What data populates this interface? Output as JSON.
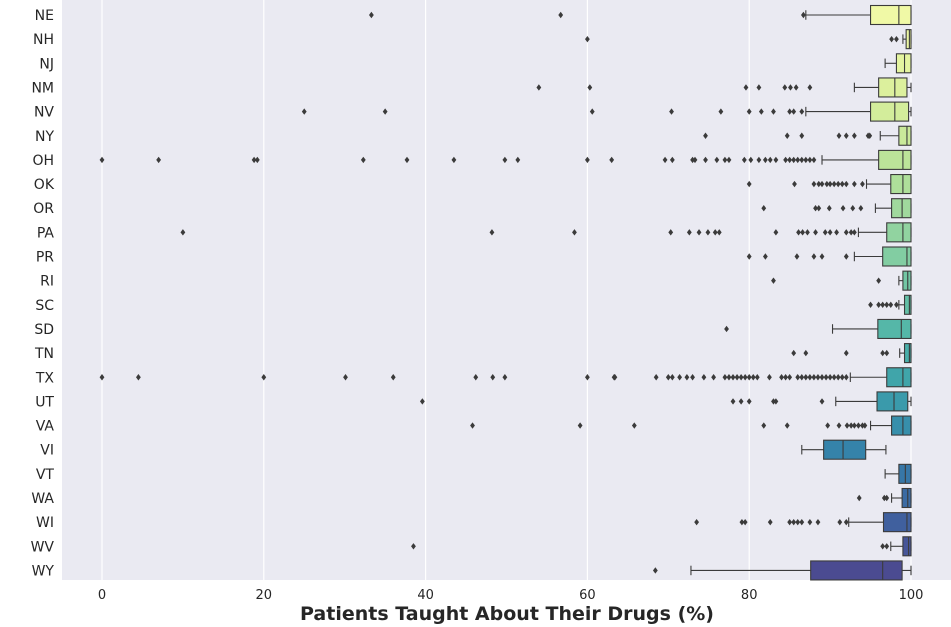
{
  "chart_data": {
    "type": "boxplot",
    "xlabel": "Patients Taught About Their Drugs (%)",
    "ylabel": "",
    "xlim": [
      -5,
      100.5
    ],
    "xticks": [
      0,
      20,
      40,
      60,
      80,
      100
    ],
    "grid": true,
    "orientation": "horizontal",
    "categories": [
      "NE",
      "NH",
      "NJ",
      "NM",
      "NV",
      "NY",
      "OH",
      "OK",
      "OR",
      "PA",
      "PR",
      "RI",
      "SC",
      "SD",
      "TN",
      "TX",
      "UT",
      "VA",
      "VI",
      "VT",
      "WA",
      "WI",
      "WV",
      "WY"
    ],
    "colors": [
      "#f0f9a6",
      "#ebf6a3",
      "#e4f4a0",
      "#dcf09d",
      "#d3ed9b",
      "#c9e99a",
      "#bce499",
      "#aedf9a",
      "#a0d99d",
      "#91d3a0",
      "#82cda2",
      "#72c6a4",
      "#63bfa6",
      "#55b7a8",
      "#49aea9",
      "#40a5aa",
      "#3a9aab",
      "#378fab",
      "#3583aa",
      "#3777a7",
      "#3b6ba3",
      "#40609e",
      "#465598",
      "#4b4b91"
    ],
    "boxes": [
      {
        "cat": "NE",
        "whislo": 87,
        "q1": 95,
        "med": 98.5,
        "q3": 100,
        "whishi": 100,
        "fliers": [
          33.3,
          56.7,
          86.7
        ]
      },
      {
        "cat": "NH",
        "whislo": 99,
        "q1": 99.4,
        "med": 99.8,
        "q3": 100,
        "whishi": 100,
        "fliers": [
          60,
          97.6,
          98.2
        ]
      },
      {
        "cat": "NJ",
        "whislo": 96.8,
        "q1": 98.2,
        "med": 99.2,
        "q3": 100,
        "whishi": 100,
        "fliers": []
      },
      {
        "cat": "NM",
        "whislo": 93,
        "q1": 96,
        "med": 98,
        "q3": 99.5,
        "whishi": 100,
        "fliers": [
          54,
          60.3,
          79.6,
          81.2,
          84.4,
          85.1,
          85.8,
          87.5
        ]
      },
      {
        "cat": "NV",
        "whislo": 87,
        "q1": 95,
        "med": 98,
        "q3": 99.7,
        "whishi": 100,
        "fliers": [
          25,
          35,
          60.6,
          70.4,
          76.5,
          80,
          81.5,
          83,
          85,
          85.5,
          86.5
        ]
      },
      {
        "cat": "NY",
        "whislo": 96.2,
        "q1": 98.5,
        "med": 99.5,
        "q3": 100,
        "whishi": 100,
        "fliers": [
          74.6,
          84.7,
          86.5,
          91.1,
          92,
          93,
          94.7,
          94.9
        ]
      },
      {
        "cat": "OH",
        "whislo": 89,
        "q1": 96,
        "med": 99,
        "q3": 100,
        "whishi": 100,
        "fliers": [
          0,
          7,
          18.8,
          19.2,
          32.3,
          37.7,
          43.5,
          49.8,
          51.4,
          60,
          63,
          69.6,
          70.5,
          73,
          73.3,
          74.6,
          76,
          77,
          77.5,
          79.4,
          80.2,
          81.2,
          82,
          82.6,
          83.3,
          84.5,
          85,
          85.5,
          86,
          86.5,
          87,
          87.5,
          88
        ]
      },
      {
        "cat": "OK",
        "whislo": 94.5,
        "q1": 97.5,
        "med": 99,
        "q3": 100,
        "whishi": 100,
        "fliers": [
          80,
          85.6,
          88,
          88.6,
          89,
          89.6,
          90,
          90.5,
          91,
          91.5,
          92,
          93,
          94
        ]
      },
      {
        "cat": "OR",
        "whislo": 95.6,
        "q1": 97.6,
        "med": 98.9,
        "q3": 100,
        "whishi": 100,
        "fliers": [
          81.8,
          88.2,
          88.6,
          89.9,
          91.6,
          92.8,
          93.8
        ]
      },
      {
        "cat": "PA",
        "whislo": 93.5,
        "q1": 97,
        "med": 99,
        "q3": 100,
        "whishi": 100,
        "fliers": [
          10,
          48.2,
          58.4,
          70.3,
          72.6,
          73.8,
          74.9,
          75.8,
          76.3,
          83.3,
          86.1,
          86.6,
          87.2,
          88.2,
          89.4,
          90,
          90.8,
          92,
          92.6,
          93
        ]
      },
      {
        "cat": "PR",
        "whislo": 93,
        "q1": 96.5,
        "med": 99.5,
        "q3": 100,
        "whishi": 100,
        "fliers": [
          80,
          82,
          85.9,
          88,
          89,
          92
        ]
      },
      {
        "cat": "RI",
        "whislo": 98.5,
        "q1": 99,
        "med": 99.6,
        "q3": 100,
        "whishi": 100,
        "fliers": [
          83,
          96
        ]
      },
      {
        "cat": "SC",
        "whislo": 98.5,
        "q1": 99.2,
        "med": 99.8,
        "q3": 100,
        "whishi": 100,
        "fliers": [
          95,
          96,
          96.5,
          97,
          97.5,
          98.2
        ]
      },
      {
        "cat": "SD",
        "whislo": 90.3,
        "q1": 95.9,
        "med": 98.8,
        "q3": 100,
        "whishi": 100,
        "fliers": [
          77.2
        ]
      },
      {
        "cat": "TN",
        "whislo": 98.6,
        "q1": 99.2,
        "med": 99.8,
        "q3": 100,
        "whishi": 100,
        "fliers": [
          85.5,
          87,
          92,
          96.5,
          97
        ]
      },
      {
        "cat": "TX",
        "whislo": 92.5,
        "q1": 97,
        "med": 99,
        "q3": 100,
        "whishi": 100,
        "fliers": [
          0,
          4.5,
          20,
          30.1,
          36,
          46.2,
          48.3,
          49.8,
          60,
          63.3,
          63.4,
          68.5,
          70,
          70.5,
          71.4,
          72.3,
          73,
          74.4,
          75.6,
          77,
          77.5,
          78,
          78.5,
          79,
          79.5,
          80,
          80.5,
          81,
          82.5,
          84,
          84.5,
          85,
          86,
          86.5,
          87,
          87.5,
          88,
          88.5,
          89,
          89.5,
          90,
          90.5,
          91,
          91.5,
          92
        ]
      },
      {
        "cat": "UT",
        "whislo": 90.7,
        "q1": 95.8,
        "med": 97.9,
        "q3": 99.6,
        "whishi": 100,
        "fliers": [
          39.6,
          78,
          79,
          80,
          83,
          83.3,
          89
        ]
      },
      {
        "cat": "VA",
        "whislo": 95,
        "q1": 97.6,
        "med": 99,
        "q3": 100,
        "whishi": 100,
        "fliers": [
          45.8,
          59.1,
          65.8,
          81.8,
          84.7,
          89.7,
          91.1,
          92.1,
          92.6,
          93,
          93.5,
          94,
          94.3
        ]
      },
      {
        "cat": "VI",
        "whislo": 86.5,
        "q1": 89.2,
        "med": 91.6,
        "q3": 94.4,
        "whishi": 96.9,
        "fliers": []
      },
      {
        "cat": "VT",
        "whislo": 96.8,
        "q1": 98.5,
        "med": 99.3,
        "q3": 100,
        "whishi": 100,
        "fliers": []
      },
      {
        "cat": "WA",
        "whislo": 97.6,
        "q1": 98.9,
        "med": 99.6,
        "q3": 100,
        "whishi": 100,
        "fliers": [
          93.6,
          96.7,
          97
        ]
      },
      {
        "cat": "WI",
        "whislo": 92.3,
        "q1": 96.6,
        "med": 99.5,
        "q3": 100,
        "whishi": 100,
        "fliers": [
          73.5,
          79.1,
          79.5,
          82.6,
          85,
          85.5,
          86,
          86.5,
          87.5,
          88.5,
          91.2,
          92
        ]
      },
      {
        "cat": "WV",
        "whislo": 97.5,
        "q1": 99,
        "med": 99.7,
        "q3": 100,
        "whishi": 100,
        "fliers": [
          38.5,
          96.5,
          97
        ]
      },
      {
        "cat": "WY",
        "whislo": 72.8,
        "q1": 87.6,
        "med": 96.5,
        "q3": 98.9,
        "whishi": 100,
        "fliers": [
          68.4
        ]
      }
    ]
  }
}
